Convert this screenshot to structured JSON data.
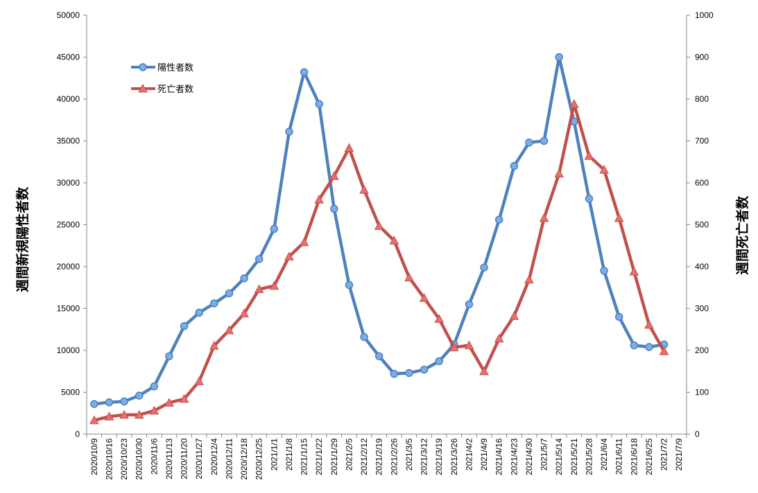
{
  "chart_data": {
    "type": "line",
    "title": "",
    "ylabel_left": "週間新規陽性者数",
    "ylabel_right": "週間死亡者数",
    "xlabel": "",
    "ylim_left": [
      0,
      50000
    ],
    "ylim_right": [
      0,
      1000
    ],
    "yticks_left": [
      "0",
      "5000",
      "10000",
      "15000",
      "20000",
      "25000",
      "30000",
      "35000",
      "40000",
      "45000",
      "50000"
    ],
    "yticks_right": [
      "0",
      "100",
      "200",
      "300",
      "400",
      "500",
      "600",
      "700",
      "800",
      "900",
      "1000"
    ],
    "grid": false,
    "legend_position": "top-left",
    "categories": [
      "2020/10/9",
      "2020/10/16",
      "2020/10/23",
      "2020/10/30",
      "2020/11/6",
      "2020/11/13",
      "2020/11/20",
      "2020/11/27",
      "2020/12/4",
      "2020/12/11",
      "2020/12/18",
      "2020/12/25",
      "2021/1/1",
      "2021/1/8",
      "2021/1/15",
      "2021/1/22",
      "2021/1/29",
      "2021/2/5",
      "2021/2/12",
      "2021/2/19",
      "2021/2/26",
      "2021/3/5",
      "2021/3/12",
      "2021/3/19",
      "2021/3/26",
      "2021/4/2",
      "2021/4/9",
      "2021/4/16",
      "2021/4/23",
      "2021/4/30",
      "2021/5/7",
      "2021/5/14",
      "2021/5/21",
      "2021/5/28",
      "2021/6/4",
      "2021/6/11",
      "2021/6/18",
      "2021/6/25",
      "2021/7/2",
      "2021/7/9"
    ],
    "series": [
      {
        "name": "陽性者数",
        "axis": "left",
        "color": "#4f81bd",
        "marker": "circle",
        "values": [
          3600,
          3800,
          3900,
          4600,
          5700,
          9300,
          12900,
          14500,
          15600,
          16800,
          18600,
          20900,
          24500,
          36100,
          43200,
          39400,
          26900,
          17800,
          11600,
          9300,
          7200,
          7300,
          7700,
          8700,
          10700,
          15500,
          19900,
          25600,
          32000,
          34800,
          35000,
          45000,
          37300,
          28100,
          19500,
          14000,
          10600,
          10400,
          10700,
          null
        ]
      },
      {
        "name": "死亡者数",
        "axis": "right",
        "color": "#c0504d",
        "marker": "triangle",
        "values": [
          33,
          42,
          46,
          46,
          56,
          75,
          84,
          126,
          211,
          248,
          288,
          346,
          354,
          424,
          458,
          560,
          616,
          683,
          583,
          497,
          462,
          374,
          325,
          275,
          207,
          212,
          150,
          228,
          282,
          369,
          516,
          622,
          788,
          664,
          631,
          516,
          388,
          261,
          198,
          null
        ]
      }
    ]
  }
}
